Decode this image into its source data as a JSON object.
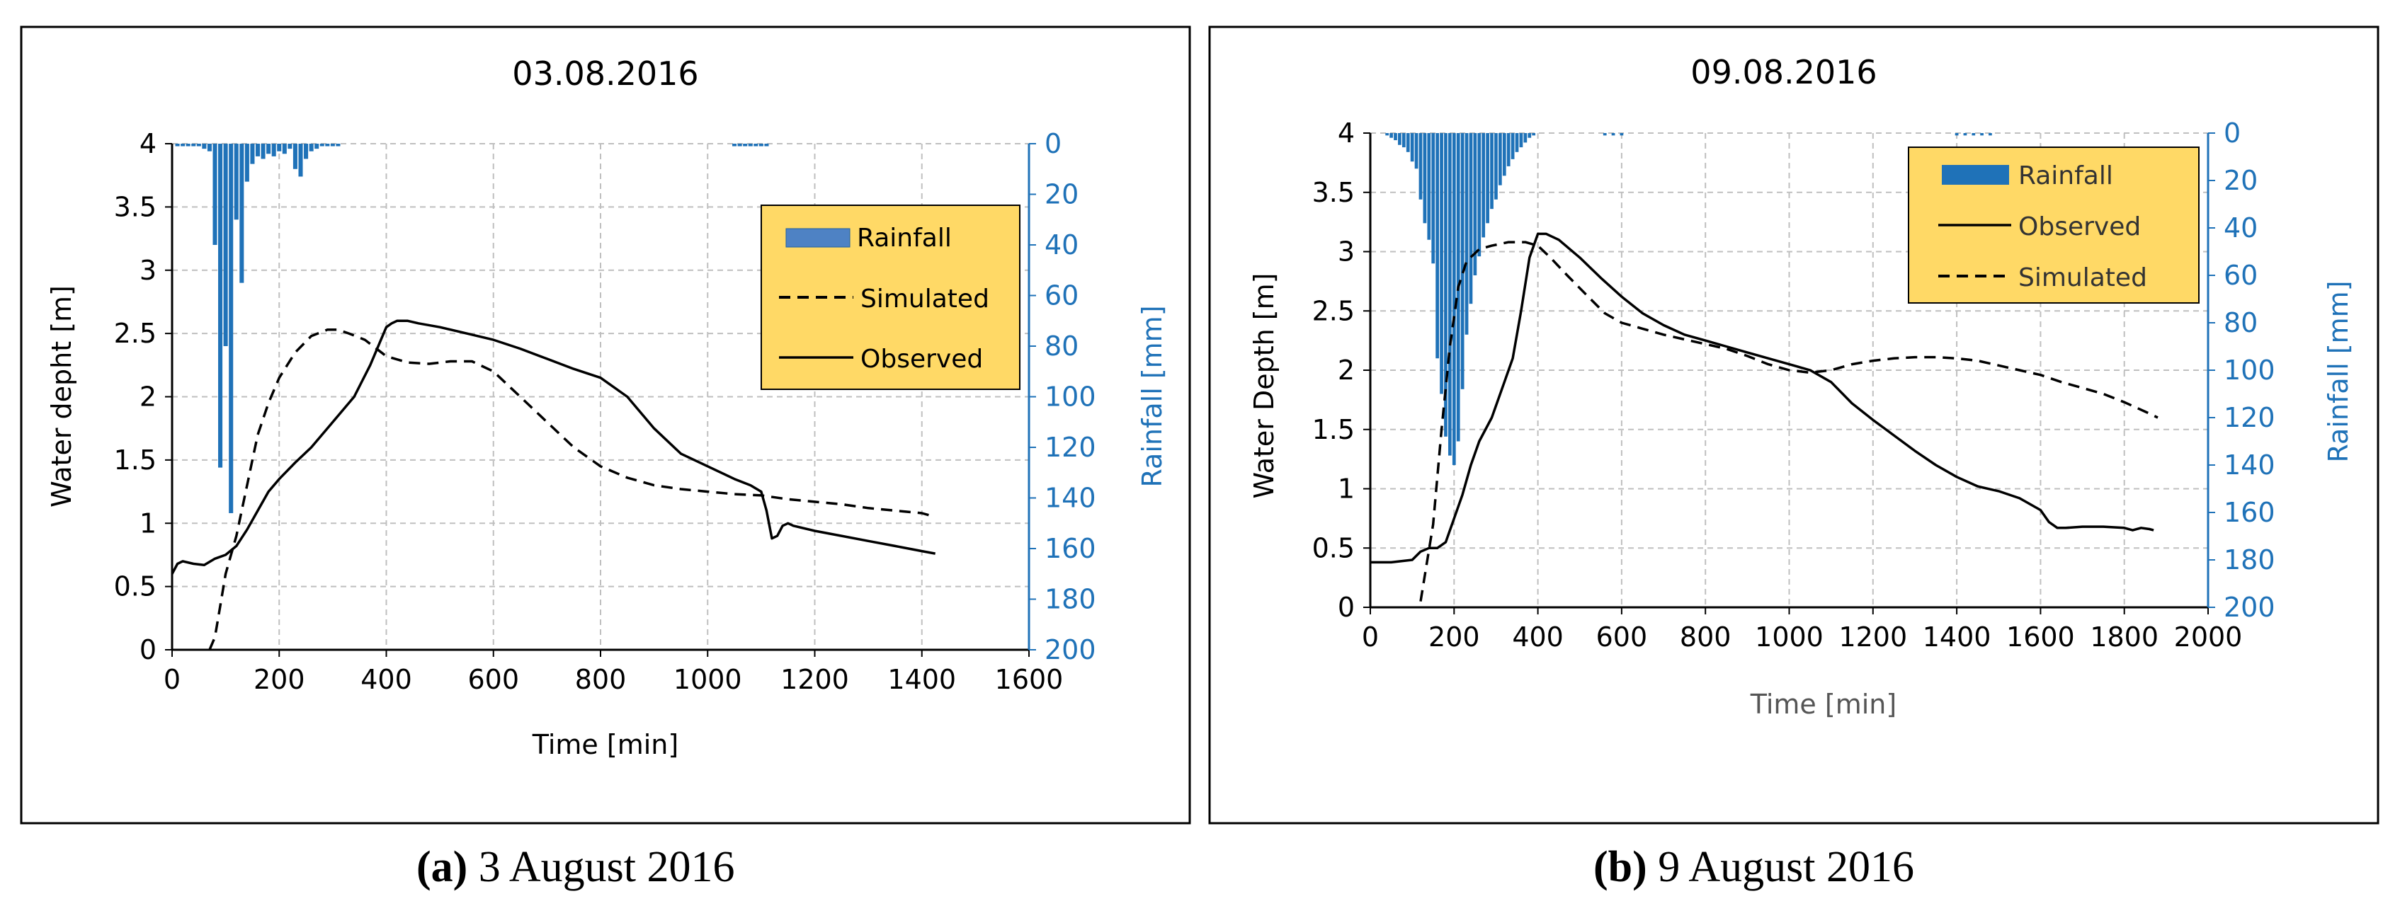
{
  "colors": {
    "rain": "#1f72b8",
    "axis_right": "#1f72b8",
    "legend_bg": "#ffd966",
    "grid": "#bfbfbf",
    "line": "#000000"
  },
  "captions": [
    {
      "label": "(a)",
      "text": "3 August 2016"
    },
    {
      "label": "(b)",
      "text": "9 August 2016"
    }
  ],
  "chart_data": [
    {
      "type": "line",
      "title": "03.08.2016",
      "xlabel": "Time [min]",
      "ylabel": "Water depht [m]",
      "y2label": "Rainfall [mm]",
      "xlim": [
        0,
        1600
      ],
      "ylim": [
        0,
        4
      ],
      "y2lim": [
        0,
        200
      ],
      "y2_inverted": true,
      "xticks": [
        0,
        200,
        400,
        600,
        800,
        1000,
        1200,
        1400,
        1600
      ],
      "yticks": [
        0,
        0.5,
        1,
        1.5,
        2,
        2.5,
        3,
        3.5,
        4
      ],
      "y2ticks": [
        0,
        20,
        40,
        60,
        80,
        100,
        120,
        140,
        160,
        180,
        200
      ],
      "legend": [
        "Rainfall",
        "Simulated",
        "Observed"
      ],
      "legend_position": "top-right",
      "rainfall": {
        "name": "Rainfall",
        "x": [
          10,
          20,
          30,
          40,
          50,
          60,
          70,
          80,
          90,
          100,
          110,
          120,
          130,
          140,
          150,
          160,
          170,
          180,
          190,
          200,
          210,
          220,
          230,
          240,
          250,
          260,
          270,
          280,
          290,
          300,
          310,
          1050,
          1060,
          1070,
          1080,
          1090,
          1100,
          1110
        ],
        "values": [
          1,
          1,
          1,
          1,
          1,
          2,
          3,
          40,
          128,
          80,
          146,
          30,
          55,
          15,
          8,
          5,
          6,
          4,
          5,
          3,
          4,
          2,
          10,
          13,
          6,
          3,
          2,
          1,
          1,
          1,
          1,
          1,
          1,
          1,
          1,
          1,
          1,
          1
        ]
      },
      "series": [
        {
          "name": "Simulated",
          "style": "dashed",
          "x": [
            70,
            80,
            90,
            100,
            110,
            120,
            130,
            140,
            150,
            160,
            180,
            200,
            230,
            260,
            290,
            310,
            330,
            360,
            400,
            440,
            480,
            520,
            560,
            600,
            650,
            700,
            750,
            800,
            850,
            900,
            950,
            1000,
            1050,
            1100,
            1150,
            1200,
            1250,
            1300,
            1350,
            1400,
            1425
          ],
          "values": [
            0,
            0.1,
            0.35,
            0.6,
            0.75,
            0.9,
            1.1,
            1.3,
            1.5,
            1.7,
            1.95,
            2.15,
            2.35,
            2.48,
            2.53,
            2.53,
            2.5,
            2.45,
            2.32,
            2.27,
            2.26,
            2.28,
            2.28,
            2.2,
            2.0,
            1.8,
            1.6,
            1.45,
            1.36,
            1.3,
            1.27,
            1.25,
            1.23,
            1.22,
            1.19,
            1.17,
            1.15,
            1.12,
            1.1,
            1.08,
            1.05
          ]
        },
        {
          "name": "Observed",
          "style": "solid",
          "x": [
            0,
            10,
            20,
            40,
            60,
            80,
            100,
            120,
            140,
            160,
            180,
            200,
            230,
            260,
            300,
            340,
            370,
            390,
            400,
            410,
            420,
            440,
            460,
            500,
            550,
            600,
            650,
            700,
            750,
            800,
            850,
            900,
            950,
            1000,
            1050,
            1080,
            1100,
            1110,
            1120,
            1130,
            1140,
            1150,
            1160,
            1200,
            1250,
            1300,
            1350,
            1400,
            1425
          ],
          "values": [
            0.6,
            0.68,
            0.7,
            0.68,
            0.67,
            0.72,
            0.75,
            0.82,
            0.95,
            1.1,
            1.25,
            1.35,
            1.48,
            1.6,
            1.8,
            2.0,
            2.25,
            2.45,
            2.55,
            2.58,
            2.6,
            2.6,
            2.58,
            2.55,
            2.5,
            2.45,
            2.38,
            2.3,
            2.22,
            2.15,
            2.0,
            1.75,
            1.55,
            1.45,
            1.35,
            1.3,
            1.25,
            1.1,
            0.88,
            0.9,
            0.98,
            1.0,
            0.98,
            0.94,
            0.9,
            0.86,
            0.82,
            0.78,
            0.76
          ]
        }
      ]
    },
    {
      "type": "line",
      "title": "09.08.2016",
      "xlabel": "Time [min]",
      "ylabel": "Water Depth [m]",
      "y2label": "Rainfall [mm]",
      "xlim": [
        0,
        2000
      ],
      "ylim": [
        0,
        4
      ],
      "y2lim": [
        0,
        200
      ],
      "y2_inverted": true,
      "xticks": [
        0,
        200,
        400,
        600,
        800,
        1000,
        1200,
        1400,
        1600,
        1800,
        2000
      ],
      "yticks": [
        0,
        0.5,
        1,
        1.5,
        2,
        2.5,
        3,
        3.5,
        4
      ],
      "y2ticks": [
        0,
        20,
        40,
        60,
        80,
        100,
        120,
        140,
        160,
        180,
        200
      ],
      "legend": [
        "Rainfall",
        "Observed",
        "Simulated"
      ],
      "legend_position": "top-right",
      "rainfall": {
        "name": "Rainfall",
        "x": [
          40,
          50,
          60,
          70,
          80,
          90,
          100,
          110,
          120,
          130,
          140,
          150,
          160,
          170,
          180,
          190,
          200,
          210,
          220,
          230,
          240,
          250,
          260,
          270,
          280,
          290,
          300,
          310,
          320,
          330,
          340,
          350,
          360,
          370,
          380,
          390,
          560,
          580,
          600,
          1400,
          1420,
          1440,
          1460,
          1480
        ],
        "values": [
          1,
          2,
          3,
          5,
          6,
          8,
          12,
          15,
          28,
          38,
          45,
          55,
          95,
          110,
          128,
          136,
          140,
          130,
          108,
          85,
          72,
          60,
          52,
          44,
          38,
          32,
          28,
          22,
          18,
          14,
          11,
          8,
          6,
          4,
          2,
          1,
          1,
          1,
          1,
          1,
          1,
          1,
          1,
          1
        ]
      },
      "series": [
        {
          "name": "Observed",
          "style": "solid",
          "x": [
            0,
            50,
            100,
            120,
            140,
            160,
            180,
            200,
            220,
            240,
            260,
            290,
            320,
            340,
            360,
            380,
            400,
            420,
            450,
            500,
            550,
            600,
            650,
            700,
            750,
            800,
            850,
            900,
            1000,
            1050,
            1100,
            1150,
            1200,
            1250,
            1300,
            1350,
            1400,
            1450,
            1500,
            1550,
            1600,
            1620,
            1640,
            1660,
            1700,
            1750,
            1800,
            1820,
            1840,
            1860,
            1870
          ],
          "values": [
            0.38,
            0.38,
            0.4,
            0.47,
            0.5,
            0.5,
            0.55,
            0.75,
            0.95,
            1.2,
            1.4,
            1.6,
            1.9,
            2.1,
            2.5,
            2.95,
            3.15,
            3.15,
            3.1,
            2.95,
            2.78,
            2.62,
            2.48,
            2.38,
            2.3,
            2.25,
            2.2,
            2.15,
            2.05,
            2.0,
            1.9,
            1.72,
            1.58,
            1.45,
            1.32,
            1.2,
            1.1,
            1.02,
            0.98,
            0.92,
            0.82,
            0.72,
            0.67,
            0.67,
            0.68,
            0.68,
            0.67,
            0.65,
            0.67,
            0.66,
            0.65
          ]
        },
        {
          "name": "Simulated",
          "style": "dashed",
          "x": [
            120,
            150,
            170,
            190,
            210,
            230,
            260,
            290,
            330,
            370,
            400,
            430,
            470,
            520,
            560,
            600,
            650,
            700,
            750,
            800,
            850,
            900,
            950,
            1000,
            1050,
            1100,
            1150,
            1200,
            1250,
            1300,
            1350,
            1400,
            1450,
            1500,
            1550,
            1600,
            1650,
            1700,
            1750,
            1800,
            1850,
            1880
          ],
          "values": [
            0.05,
            0.7,
            1.5,
            2.2,
            2.7,
            2.92,
            3.02,
            3.05,
            3.08,
            3.08,
            3.05,
            2.95,
            2.8,
            2.62,
            2.48,
            2.4,
            2.35,
            2.3,
            2.26,
            2.22,
            2.18,
            2.12,
            2.05,
            2.0,
            1.98,
            2.0,
            2.05,
            2.08,
            2.1,
            2.11,
            2.11,
            2.1,
            2.08,
            2.04,
            2.0,
            1.96,
            1.9,
            1.85,
            1.8,
            1.73,
            1.65,
            1.6
          ]
        }
      ]
    }
  ]
}
